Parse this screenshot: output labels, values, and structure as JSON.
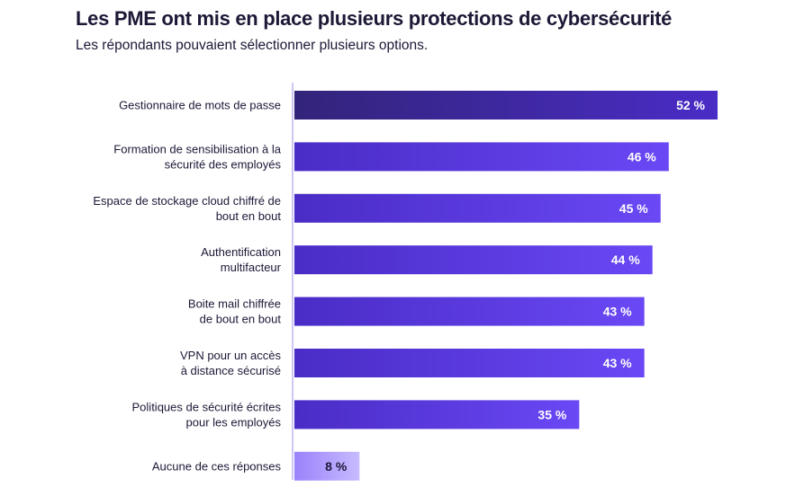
{
  "chart_data": {
    "type": "bar",
    "orientation": "horizontal",
    "title": "Les PME ont mis en place plusieurs protections de cybersécurité",
    "subtitle": "Les répondants pouvaient sélectionner plusieurs options.",
    "unit": "%",
    "categories": [
      [
        "Gestionnaire de mots de passe"
      ],
      [
        "Formation de sensibilisation à la",
        "sécurité des employés"
      ],
      [
        "Espace de stockage cloud chiffré de",
        "bout en bout"
      ],
      [
        "Authentification",
        "multifacteur"
      ],
      [
        "Boite mail chiffrée",
        "de bout en bout"
      ],
      [
        "VPN pour un accès",
        "à distance sécurisé"
      ],
      [
        "Politiques de sécurité écrites",
        "pour les employés"
      ],
      [
        "Aucune de ces réponses"
      ]
    ],
    "values": [
      52,
      46,
      45,
      44,
      43,
      43,
      35,
      8
    ],
    "value_labels": [
      "52 %",
      "46 %",
      "45 %",
      "44 %",
      "43 %",
      "43 %",
      "35 %",
      "8 %"
    ],
    "xlim": [
      0,
      52
    ],
    "grid": false,
    "colors": {
      "bar_dark": "#33247a",
      "bar_main": "#4b2cc8",
      "bar_light": "#6a48f5",
      "bar_none": "#c6b8ff",
      "axis": "#cfc6f5"
    }
  }
}
